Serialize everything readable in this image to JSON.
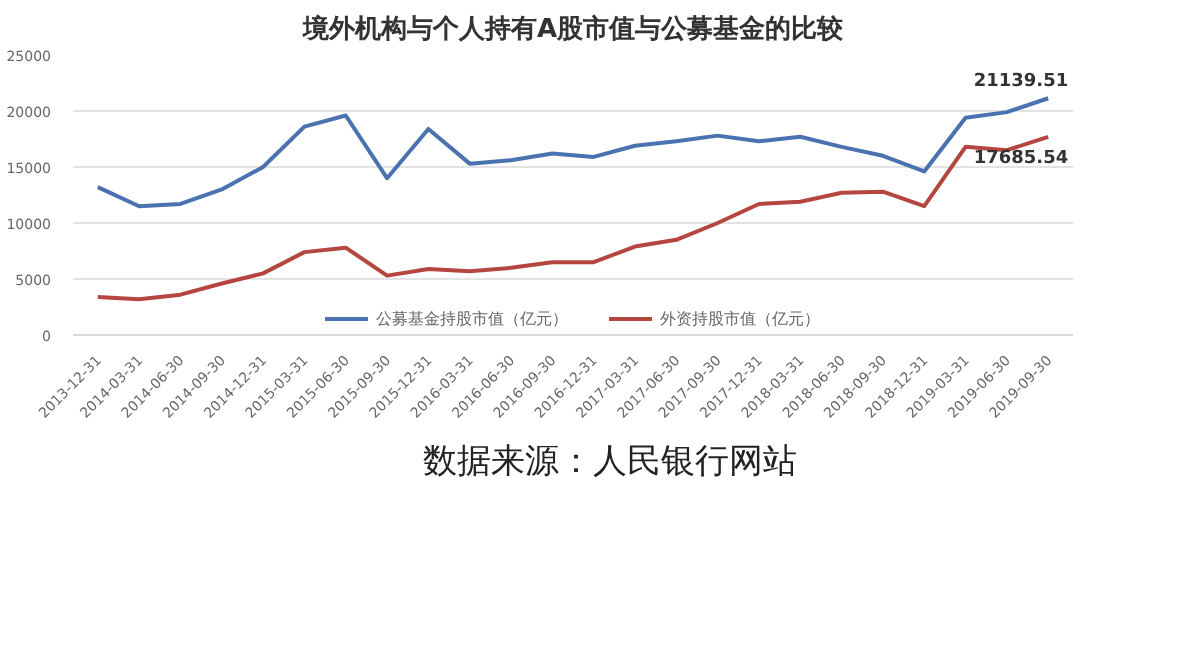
{
  "chart_data": {
    "type": "line",
    "title": "境外机构与个人持有A股市值与公募基金的比较",
    "categories": [
      "2013-12-31",
      "2014-03-31",
      "2014-06-30",
      "2014-09-30",
      "2014-12-31",
      "2015-03-31",
      "2015-06-30",
      "2015-09-30",
      "2015-12-31",
      "2016-03-31",
      "2016-06-30",
      "2016-09-30",
      "2016-12-31",
      "2017-03-31",
      "2017-06-30",
      "2017-09-30",
      "2017-12-31",
      "2018-03-31",
      "2018-06-30",
      "2018-09-30",
      "2018-12-31",
      "2019-03-31",
      "2019-06-30",
      "2019-09-30"
    ],
    "series": [
      {
        "name": "公募基金持股市值（亿元）",
        "color": "#4a72b0",
        "values": [
          13200,
          11500,
          11700,
          13000,
          15000,
          18600,
          19600,
          14000,
          18400,
          15300,
          15600,
          16200,
          15900,
          16900,
          17300,
          17800,
          17300,
          17700,
          16800,
          16000,
          14600,
          19400,
          19900,
          21139.51
        ],
        "value_labels": [
          null,
          null,
          null,
          null,
          null,
          null,
          null,
          null,
          null,
          null,
          null,
          null,
          null,
          null,
          null,
          null,
          null,
          null,
          null,
          null,
          null,
          null,
          null,
          "21139.51"
        ]
      },
      {
        "name": "外资持股市值（亿元）",
        "color": "#b5463f",
        "values": [
          3400,
          3200,
          3600,
          4600,
          5500,
          7400,
          7800,
          5300,
          5900,
          5700,
          6000,
          6500,
          6500,
          7900,
          8500,
          10000,
          11700,
          11900,
          12700,
          12800,
          11500,
          16800,
          16500,
          17685.54
        ],
        "value_labels": [
          null,
          null,
          null,
          null,
          null,
          null,
          null,
          null,
          null,
          null,
          null,
          null,
          null,
          null,
          null,
          null,
          null,
          null,
          null,
          null,
          null,
          null,
          null,
          "17685.54"
        ]
      }
    ],
    "ylim": [
      0,
      25000
    ],
    "yticks": [
      0,
      5000,
      10000,
      15000,
      20000,
      25000
    ],
    "grid": "y",
    "legend": "bottom",
    "marker": "none",
    "line_style": "solid",
    "annotations": [
      "数据来源：人民银行网站"
    ]
  }
}
